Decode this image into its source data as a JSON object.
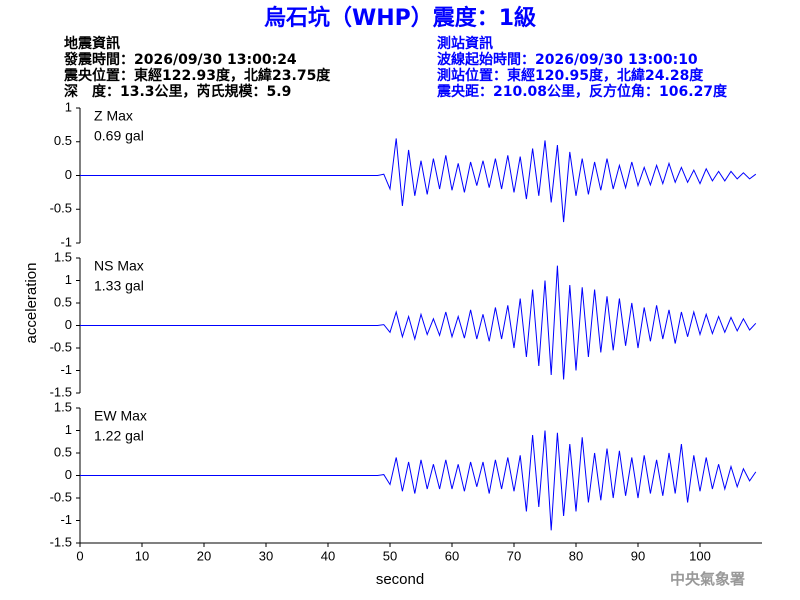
{
  "header": {
    "title": "烏石坑（WHP）震度：1級",
    "left": [
      "地震資訊",
      "發震時間：2026/09/30 13:00:24",
      "震央位置：東經122.93度，北緯23.75度",
      "深　度：13.3公里，芮氏規模：5.9"
    ],
    "right": [
      "測站資訊",
      "波線起始時間：2026/09/30 13:00:10",
      "測站位置：東經120.95度，北緯24.28度",
      "震央距：210.08公里，反方位角：106.27度"
    ],
    "footer": "中央氣象署"
  },
  "xlabel": "second",
  "ylabel": "acceleration",
  "chart_data": [
    {
      "type": "line",
      "color": "#0000ff",
      "annotations": [
        "Z Max",
        "0.69 gal"
      ],
      "xlim": [
        0,
        110
      ],
      "ylim": [
        -1,
        1
      ],
      "yticks": [
        1,
        0.5,
        0,
        -0.5,
        -1
      ],
      "x": [
        0,
        48,
        49,
        50,
        51,
        52,
        53,
        54,
        55,
        56,
        57,
        58,
        59,
        60,
        61,
        62,
        63,
        64,
        65,
        66,
        67,
        68,
        69,
        70,
        71,
        72,
        73,
        74,
        75,
        76,
        77,
        78,
        79,
        80,
        81,
        82,
        83,
        84,
        85,
        86,
        87,
        88,
        89,
        90,
        91,
        92,
        93,
        94,
        95,
        96,
        97,
        98,
        99,
        100,
        101,
        102,
        103,
        104,
        105,
        106,
        107,
        108,
        109
      ],
      "values": [
        0,
        0,
        0.02,
        -0.2,
        0.55,
        -0.45,
        0.38,
        -0.3,
        0.22,
        -0.28,
        0.25,
        -0.2,
        0.3,
        -0.22,
        0.18,
        -0.25,
        0.2,
        -0.15,
        0.22,
        -0.18,
        0.25,
        -0.2,
        0.3,
        -0.25,
        0.28,
        -0.35,
        0.4,
        -0.3,
        0.52,
        -0.4,
        0.45,
        -0.69,
        0.35,
        -0.3,
        0.25,
        -0.28,
        0.2,
        -0.22,
        0.25,
        -0.2,
        0.15,
        -0.18,
        0.2,
        -0.15,
        0.12,
        -0.14,
        0.15,
        -0.12,
        0.18,
        -0.1,
        0.12,
        -0.1,
        0.08,
        -0.12,
        0.1,
        -0.08,
        0.06,
        -0.08,
        0.06,
        -0.05,
        0.04,
        -0.05,
        0.02
      ]
    },
    {
      "type": "line",
      "color": "#0000ff",
      "annotations": [
        "NS Max",
        "1.33 gal"
      ],
      "xlim": [
        0,
        110
      ],
      "ylim": [
        -1.5,
        1.5
      ],
      "yticks": [
        1.5,
        1,
        0.5,
        0,
        -0.5,
        -1,
        -1.5
      ],
      "x": [
        0,
        48,
        49,
        50,
        51,
        52,
        53,
        54,
        55,
        56,
        57,
        58,
        59,
        60,
        61,
        62,
        63,
        64,
        65,
        66,
        67,
        68,
        69,
        70,
        71,
        72,
        73,
        74,
        75,
        76,
        77,
        78,
        79,
        80,
        81,
        82,
        83,
        84,
        85,
        86,
        87,
        88,
        89,
        90,
        91,
        92,
        93,
        94,
        95,
        96,
        97,
        98,
        99,
        100,
        101,
        102,
        103,
        104,
        105,
        106,
        107,
        108,
        109
      ],
      "values": [
        0,
        0,
        0.02,
        -0.15,
        0.3,
        -0.25,
        0.2,
        -0.3,
        0.25,
        -0.2,
        0.15,
        -0.22,
        0.3,
        -0.25,
        0.2,
        -0.28,
        0.35,
        -0.3,
        0.25,
        -0.35,
        0.4,
        -0.3,
        0.45,
        -0.5,
        0.6,
        -0.7,
        0.8,
        -0.9,
        1.0,
        -1.1,
        1.33,
        -1.2,
        0.9,
        -1.0,
        0.85,
        -0.7,
        0.8,
        -0.6,
        0.65,
        -0.55,
        0.6,
        -0.45,
        0.5,
        -0.5,
        0.4,
        -0.35,
        0.45,
        -0.3,
        0.35,
        -0.4,
        0.3,
        -0.25,
        0.3,
        -0.2,
        0.25,
        -0.18,
        0.2,
        -0.15,
        0.18,
        -0.12,
        0.15,
        -0.1,
        0.05
      ]
    },
    {
      "type": "line",
      "color": "#0000ff",
      "annotations": [
        "EW Max",
        "1.22 gal"
      ],
      "xlim": [
        0,
        110
      ],
      "ylim": [
        -1.5,
        1.5
      ],
      "yticks": [
        1.5,
        1,
        0.5,
        0,
        -0.5,
        -1,
        -1.5
      ],
      "xticks": [
        0,
        10,
        20,
        30,
        40,
        50,
        60,
        70,
        80,
        90,
        100
      ],
      "x": [
        0,
        48,
        49,
        50,
        51,
        52,
        53,
        54,
        55,
        56,
        57,
        58,
        59,
        60,
        61,
        62,
        63,
        64,
        65,
        66,
        67,
        68,
        69,
        70,
        71,
        72,
        73,
        74,
        75,
        76,
        77,
        78,
        79,
        80,
        81,
        82,
        83,
        84,
        85,
        86,
        87,
        88,
        89,
        90,
        91,
        92,
        93,
        94,
        95,
        96,
        97,
        98,
        99,
        100,
        101,
        102,
        103,
        104,
        105,
        106,
        107,
        108,
        109
      ],
      "values": [
        0,
        0,
        0.02,
        -0.2,
        0.4,
        -0.35,
        0.3,
        -0.4,
        0.35,
        -0.3,
        0.25,
        -0.3,
        0.35,
        -0.3,
        0.25,
        -0.35,
        0.3,
        -0.25,
        0.3,
        -0.4,
        0.35,
        -0.3,
        0.4,
        -0.35,
        0.45,
        -0.8,
        0.9,
        -0.7,
        1.0,
        -1.22,
        0.95,
        -0.9,
        0.7,
        -0.8,
        0.85,
        -0.6,
        0.5,
        -0.55,
        0.6,
        -0.5,
        0.55,
        -0.45,
        0.4,
        -0.5,
        0.45,
        -0.4,
        0.35,
        -0.45,
        0.5,
        -0.4,
        0.7,
        -0.6,
        0.45,
        -0.35,
        0.4,
        -0.3,
        0.25,
        -0.3,
        0.2,
        -0.25,
        0.15,
        -0.12,
        0.08
      ]
    }
  ]
}
